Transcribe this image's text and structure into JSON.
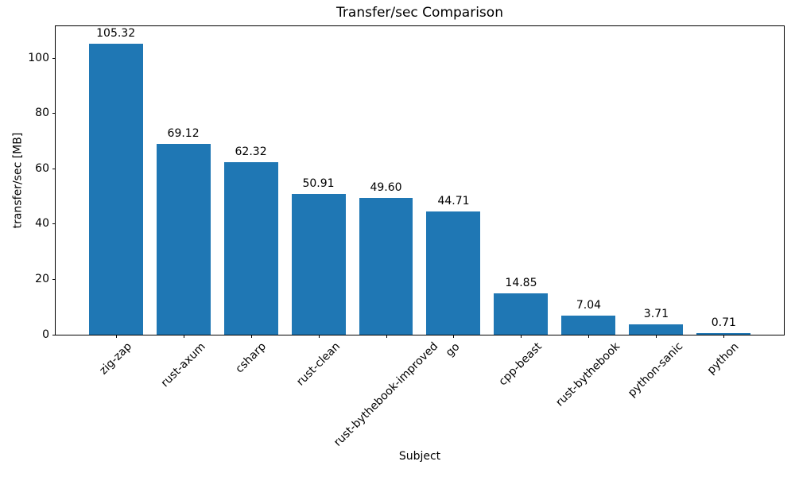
{
  "chart_data": {
    "type": "bar",
    "title": "Transfer/sec Comparison",
    "xlabel": "Subject",
    "ylabel": "transfer/sec [MB]",
    "categories": [
      "zig-zap",
      "rust-axum",
      "csharp",
      "rust-clean",
      "rust-bythebook-improved",
      "go",
      "cpp-beast",
      "rust-bythebook",
      "python-sanic",
      "python"
    ],
    "values": [
      105.32,
      69.12,
      62.32,
      50.91,
      49.6,
      44.71,
      14.85,
      7.04,
      3.71,
      0.71
    ],
    "value_labels": [
      "105.32",
      "69.12",
      "62.32",
      "50.91",
      "49.60",
      "44.71",
      "14.85",
      "7.04",
      "3.71",
      "0.71"
    ],
    "yticks": [
      0,
      20,
      40,
      60,
      80,
      100
    ],
    "ytick_labels": [
      "0",
      "20",
      "40",
      "60",
      "80",
      "100"
    ],
    "ylim": [
      0,
      111.6
    ],
    "x_tick_rotation": 45,
    "bar_width_fraction": 0.8,
    "bar_color": "#1f77b4",
    "axis_color": "#000000",
    "text_color": "#000000",
    "grid": false,
    "legend": null
  }
}
